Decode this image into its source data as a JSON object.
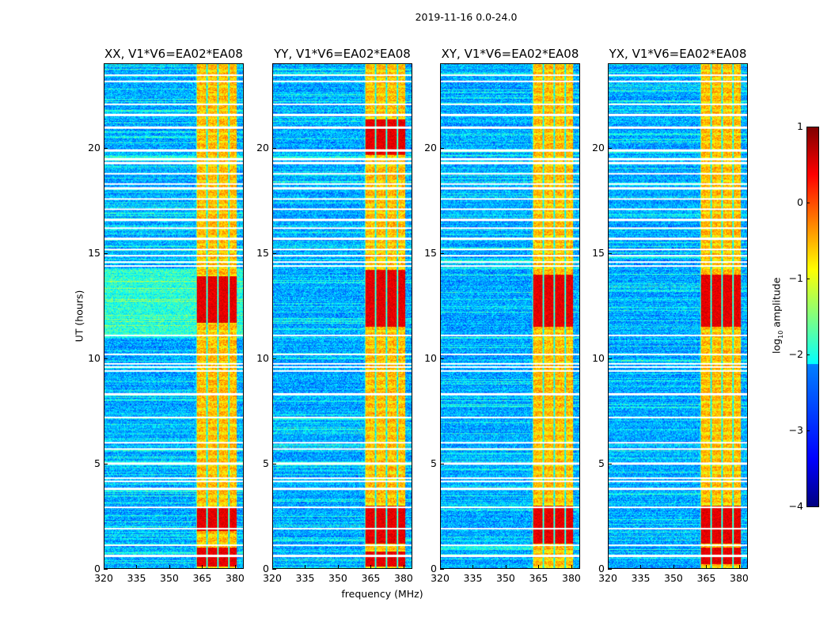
{
  "chart_data": {
    "type": "heatmap",
    "title": "2019-11-16 0.0-24.0",
    "xlabel": "frequency (MHz)",
    "ylabel": "UT (hours)",
    "xlim": [
      320,
      384
    ],
    "ylim": [
      0,
      24
    ],
    "xticks": [
      320,
      335,
      350,
      365,
      380
    ],
    "yticks": [
      0,
      5,
      10,
      15,
      20
    ],
    "panels": [
      {
        "title": "XX, V1*V6=EA02*EA08",
        "strong_rfi_hours": [
          [
            0.1,
            1.0
          ],
          [
            1.8,
            2.9
          ],
          [
            11.7,
            13.9
          ]
        ]
      },
      {
        "title": "YY, V1*V6=EA02*EA08",
        "strong_rfi_hours": [
          [
            0.1,
            0.8
          ],
          [
            1.2,
            3.0
          ],
          [
            11.5,
            14.2
          ],
          [
            19.7,
            21.4
          ]
        ]
      },
      {
        "title": "XY, V1*V6=EA02*EA08",
        "strong_rfi_hours": [
          [
            1.2,
            3.0
          ],
          [
            11.5,
            14.0
          ]
        ]
      },
      {
        "title": "YX, V1*V6=EA02*EA08",
        "strong_rfi_hours": [
          [
            0.2,
            1.0
          ],
          [
            1.2,
            3.0
          ],
          [
            11.5,
            14.0
          ]
        ]
      }
    ],
    "rfi_band_mhz": [
      362,
      381
    ],
    "flagged_hours": [
      0.6,
      1.1,
      1.9,
      2.9,
      3.8,
      4.15,
      4.3,
      5.0,
      5.7,
      6.0,
      7.2,
      8.3,
      9.4,
      9.6,
      9.75,
      10.2,
      11.1,
      14.4,
      14.6,
      14.9,
      15.2,
      15.7,
      16.2,
      16.6,
      17.1,
      17.6,
      18.1,
      18.3,
      18.8,
      19.3,
      19.5,
      19.9,
      21.0,
      21.6,
      22.1,
      23.2,
      23.5
    ],
    "colorbar": {
      "label_prefix": "log",
      "label_sub": "10",
      "label_suffix": " amplitude",
      "range": [
        -4,
        1
      ],
      "ticks": [
        1,
        0,
        -1,
        -2,
        -3,
        -4
      ],
      "tick_labels": [
        "1",
        "0",
        "−1",
        "−2",
        "−3",
        "−4"
      ],
      "colormap": "jet"
    }
  }
}
